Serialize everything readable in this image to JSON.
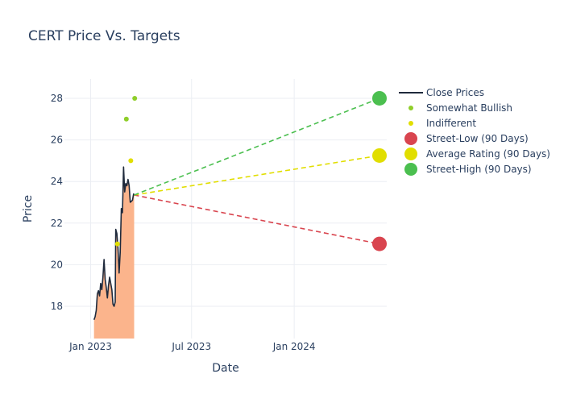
{
  "chart_data": {
    "type": "line",
    "title": "CERT Price Vs. Targets",
    "xlabel": "Date",
    "ylabel": "Price",
    "xlim": [
      "2022-11-15",
      "2024-06-15"
    ],
    "ylim": [
      16.45,
      28.93
    ],
    "grid": true,
    "legend_position": "top-right",
    "x_ticks": [
      {
        "date": "2023-01-01",
        "label": "Jan 2023"
      },
      {
        "date": "2023-07-01",
        "label": "Jul 2023"
      },
      {
        "date": "2024-01-01",
        "label": "Jan 2024"
      }
    ],
    "y_ticks": [
      18,
      20,
      22,
      24,
      26,
      28
    ],
    "colors": {
      "close_line": "#1f2a3c",
      "close_fill": "#fbb48c",
      "somewhat_bullish": "#8fce2a",
      "indifferent": "#e1de00",
      "street_low": "#d9454f",
      "average": "#e1de00",
      "street_high": "#4bbf4f",
      "grid": "#ebeef3",
      "text": "#2a3f5f"
    },
    "close_prices": [
      {
        "date": "2023-01-07",
        "value": 17.35
      },
      {
        "date": "2023-01-09",
        "value": 17.5
      },
      {
        "date": "2023-01-11",
        "value": 17.8
      },
      {
        "date": "2023-01-13",
        "value": 18.6
      },
      {
        "date": "2023-01-15",
        "value": 18.75
      },
      {
        "date": "2023-01-17",
        "value": 18.5
      },
      {
        "date": "2023-01-19",
        "value": 19.1
      },
      {
        "date": "2023-01-21",
        "value": 18.8
      },
      {
        "date": "2023-01-23",
        "value": 19.4
      },
      {
        "date": "2023-01-25",
        "value": 20.25
      },
      {
        "date": "2023-01-27",
        "value": 19.3
      },
      {
        "date": "2023-01-29",
        "value": 18.9
      },
      {
        "date": "2023-01-31",
        "value": 18.4
      },
      {
        "date": "2023-02-02",
        "value": 19.0
      },
      {
        "date": "2023-02-04",
        "value": 19.4
      },
      {
        "date": "2023-02-06",
        "value": 19.1
      },
      {
        "date": "2023-02-08",
        "value": 18.8
      },
      {
        "date": "2023-02-10",
        "value": 18.1
      },
      {
        "date": "2023-02-12",
        "value": 18.0
      },
      {
        "date": "2023-02-14",
        "value": 18.2
      },
      {
        "date": "2023-02-15",
        "value": 21.7
      },
      {
        "date": "2023-02-17",
        "value": 21.5
      },
      {
        "date": "2023-02-19",
        "value": 20.8
      },
      {
        "date": "2023-02-21",
        "value": 19.6
      },
      {
        "date": "2023-02-23",
        "value": 20.6
      },
      {
        "date": "2023-02-25",
        "value": 22.7
      },
      {
        "date": "2023-02-27",
        "value": 22.5
      },
      {
        "date": "2023-03-01",
        "value": 24.7
      },
      {
        "date": "2023-03-03",
        "value": 23.5
      },
      {
        "date": "2023-03-05",
        "value": 23.9
      },
      {
        "date": "2023-03-07",
        "value": 23.8
      },
      {
        "date": "2023-03-09",
        "value": 24.1
      },
      {
        "date": "2023-03-11",
        "value": 23.8
      },
      {
        "date": "2023-03-13",
        "value": 23.0
      },
      {
        "date": "2023-03-15",
        "value": 23.05
      },
      {
        "date": "2023-03-17",
        "value": 23.1
      },
      {
        "date": "2023-03-19",
        "value": 23.4
      },
      {
        "date": "2023-03-20",
        "value": 23.35
      }
    ],
    "somewhat_bullish": [
      {
        "date": "2023-03-06",
        "value": 27
      },
      {
        "date": "2023-03-21",
        "value": 28
      }
    ],
    "indifferent": [
      {
        "date": "2023-03-14",
        "value": 25
      },
      {
        "date": "2023-02-18",
        "value": 21
      }
    ],
    "targets": {
      "start": {
        "date": "2023-03-20",
        "value": 23.35
      },
      "end_date": "2024-06-02",
      "street_low": 21,
      "average": 25.25,
      "street_high": 28
    },
    "legend": [
      {
        "key": "close",
        "label": "Close Prices"
      },
      {
        "key": "somewhat_bullish",
        "label": "Somewhat Bullish"
      },
      {
        "key": "indifferent",
        "label": "Indifferent"
      },
      {
        "key": "street_low",
        "label": "Street-Low (90 Days)"
      },
      {
        "key": "average",
        "label": "Average Rating (90 Days)"
      },
      {
        "key": "street_high",
        "label": "Street-High (90 Days)"
      }
    ]
  }
}
